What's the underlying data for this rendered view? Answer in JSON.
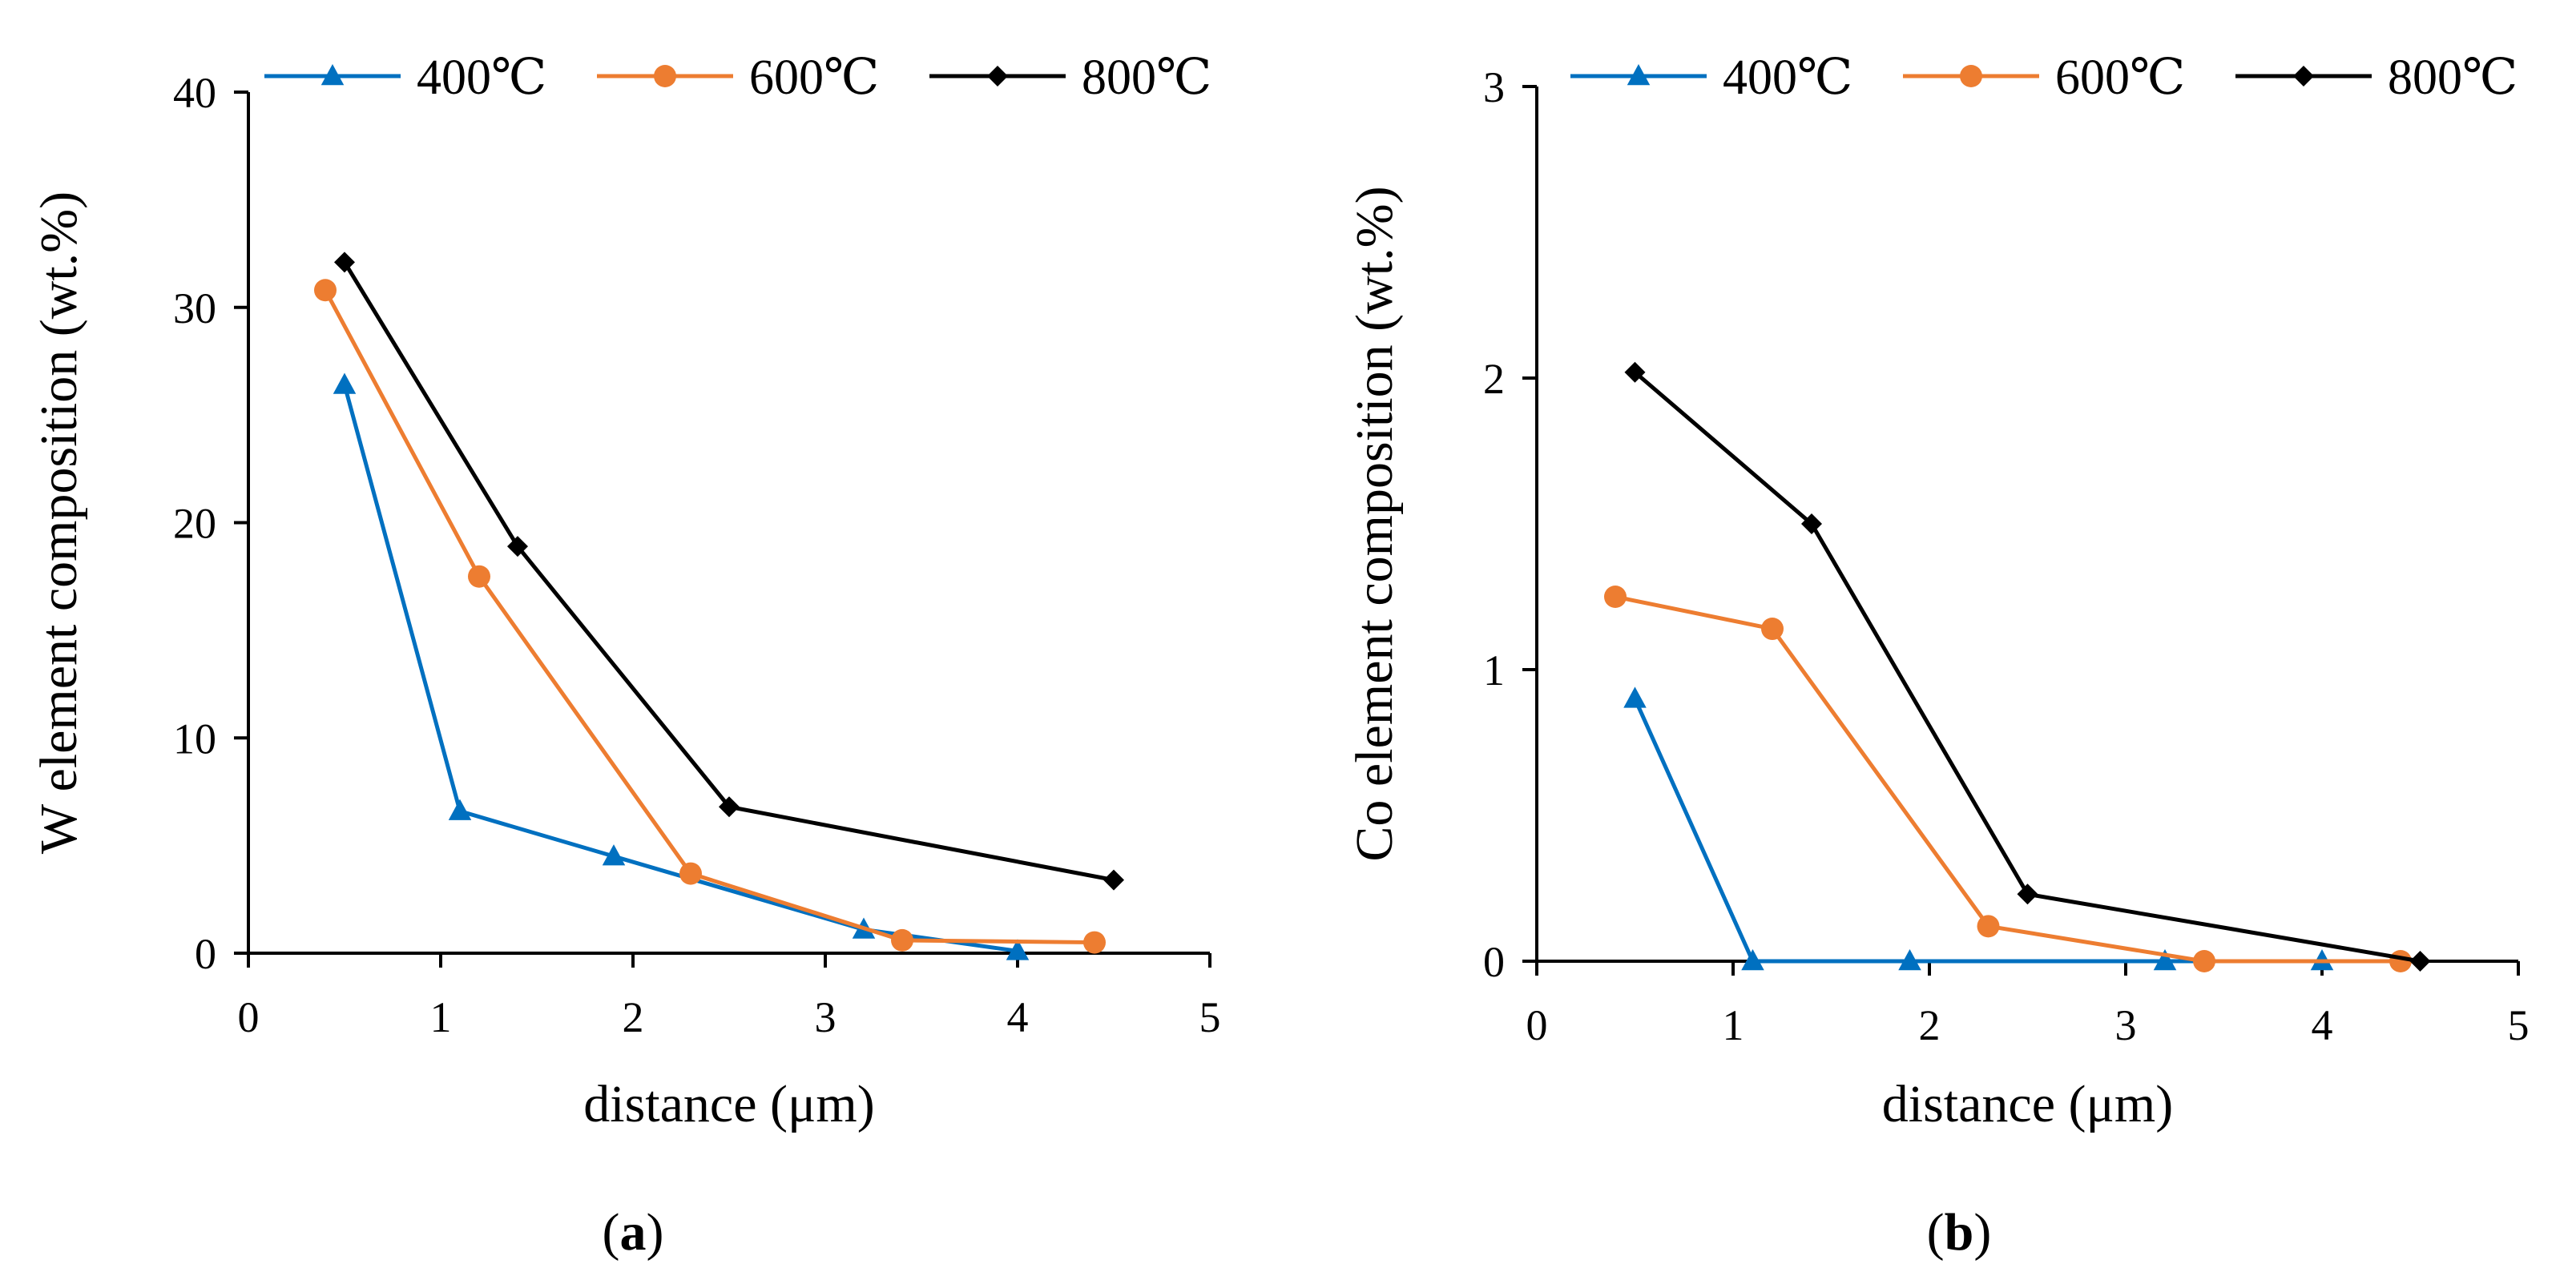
{
  "colors": {
    "400": "#0070C0",
    "600": "#ED7D31",
    "800": "#000000",
    "axis": "#000000"
  },
  "chart_data": [
    {
      "type": "line",
      "panel_label": "a",
      "title": "",
      "xlabel": "distance (μm)",
      "ylabel": "W element composition (wt.%)",
      "xlim": [
        0,
        5
      ],
      "ylim": [
        0,
        40
      ],
      "xticks": [
        0,
        1,
        2,
        3,
        4,
        5
      ],
      "yticks": [
        0,
        10,
        20,
        30,
        40
      ],
      "grid": false,
      "legend": "top",
      "series": [
        {
          "name": "400℃",
          "color": "#0070C0",
          "marker": "triangle",
          "x": [
            0.5,
            1.1,
            1.9,
            3.2,
            4.0
          ],
          "y": [
            26.4,
            6.6,
            4.5,
            1.1,
            0.1
          ]
        },
        {
          "name": "600℃",
          "color": "#ED7D31",
          "marker": "circle",
          "x": [
            0.4,
            1.2,
            2.3,
            3.4,
            4.4
          ],
          "y": [
            30.8,
            17.5,
            3.7,
            0.6,
            0.5
          ]
        },
        {
          "name": "800℃",
          "color": "#000000",
          "marker": "diamond",
          "x": [
            0.5,
            1.4,
            2.5,
            4.5
          ],
          "y": [
            32.1,
            18.9,
            6.8,
            3.4
          ]
        }
      ]
    },
    {
      "type": "line",
      "panel_label": "b",
      "title": "",
      "xlabel": "distance (μm)",
      "ylabel": "Co element composition (wt.%)",
      "xlim": [
        0,
        5
      ],
      "ylim": [
        0,
        3
      ],
      "xticks": [
        0,
        1,
        2,
        3,
        4,
        5
      ],
      "yticks": [
        0,
        1,
        2,
        3
      ],
      "grid": false,
      "legend": "top",
      "series": [
        {
          "name": "400℃",
          "color": "#0070C0",
          "marker": "triangle",
          "x": [
            0.5,
            1.1,
            1.9,
            3.2,
            4.0
          ],
          "y": [
            0.9,
            0.0,
            0.0,
            0.0,
            0.0
          ]
        },
        {
          "name": "600℃",
          "color": "#ED7D31",
          "marker": "circle",
          "x": [
            0.4,
            1.2,
            2.3,
            3.4,
            4.4
          ],
          "y": [
            1.25,
            1.14,
            0.12,
            0.0,
            0.0
          ]
        },
        {
          "name": "800℃",
          "color": "#000000",
          "marker": "diamond",
          "x": [
            0.5,
            1.4,
            2.5,
            4.5
          ],
          "y": [
            2.02,
            1.5,
            0.23,
            0.0
          ]
        }
      ]
    }
  ]
}
